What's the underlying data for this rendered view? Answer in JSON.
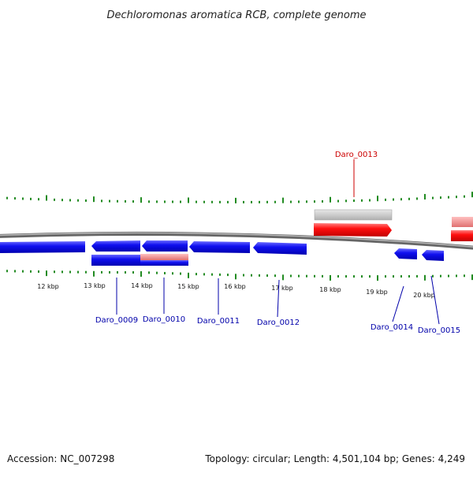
{
  "title": "Dechloromonas aromatica RCB, complete genome",
  "footer": {
    "accession": "Accession: NC_007298",
    "summary": "Topology: circular; Length: 4,501,104 bp; Genes: 4,249"
  },
  "ticks": [
    "12 kbp",
    "13 kbp",
    "14 kbp",
    "15 kbp",
    "16 kbp",
    "17 kbp",
    "18 kbp",
    "19 kbp",
    "20 kbp"
  ],
  "genes": [
    {
      "name": "Daro_0009",
      "strand": "minus"
    },
    {
      "name": "Daro_0010",
      "strand": "minus"
    },
    {
      "name": "Daro_0011",
      "strand": "minus"
    },
    {
      "name": "Daro_0012",
      "strand": "minus"
    },
    {
      "name": "Daro_0013",
      "strand": "plus"
    },
    {
      "name": "Daro_0014",
      "strand": "minus"
    },
    {
      "name": "Daro_0015",
      "strand": "minus"
    }
  ],
  "colors": {
    "plus_strand": "#ff0000",
    "minus_strand": "#0000ee",
    "plus_label": "#cc0000",
    "minus_label": "#0000aa",
    "tick_marks": "#228b22",
    "backbone": "#808080"
  }
}
